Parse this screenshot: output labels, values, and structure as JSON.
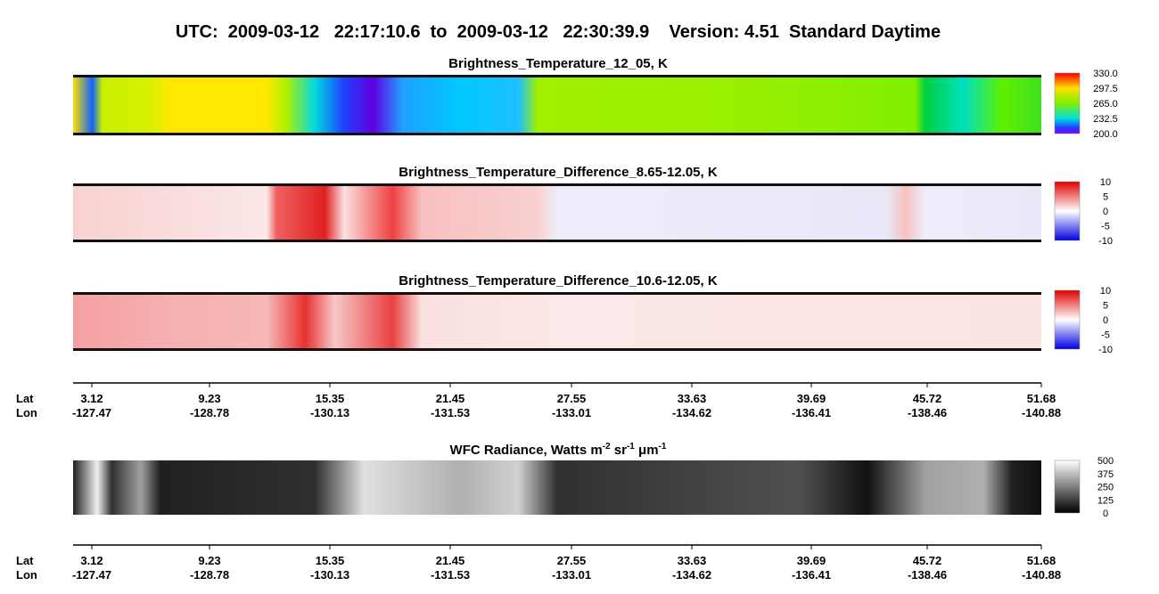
{
  "header": {
    "title": "UTC:  2009-03-12   22:17:10.6  to  2009-03-12   22:30:39.9    Version: 4.51  Standard Daytime"
  },
  "panels": [
    {
      "title": "Brightness_Temperature_12_05, K",
      "colorbar": [
        "330.0",
        "297.5",
        "265.0",
        "232.5",
        "200.0"
      ]
    },
    {
      "title": "Brightness_Temperature_Difference_8.65-12.05, K",
      "colorbar": [
        "10",
        "5",
        "0",
        "-5",
        "-10"
      ]
    },
    {
      "title": "Brightness_Temperature_Difference_10.6-12.05, K",
      "colorbar": [
        "10",
        "5",
        "0",
        "-5",
        "-10"
      ]
    }
  ],
  "wfc": {
    "title_parts": [
      "WFC Radiance, Watts m",
      "-2",
      " sr",
      "-1",
      " μm",
      "-1"
    ],
    "colorbar": [
      "500",
      "375",
      "250",
      "125",
      "0"
    ]
  },
  "axis": {
    "lat_label": "Lat",
    "lon_label": "Lon",
    "lat": [
      "3.12",
      "9.23",
      "15.35",
      "21.45",
      "27.55",
      "33.63",
      "39.69",
      "45.72",
      "51.68"
    ],
    "lon": [
      "-127.47",
      "-128.78",
      "-130.13",
      "-131.53",
      "-133.01",
      "-134.62",
      "-136.41",
      "-138.46",
      "-140.88"
    ]
  }
}
